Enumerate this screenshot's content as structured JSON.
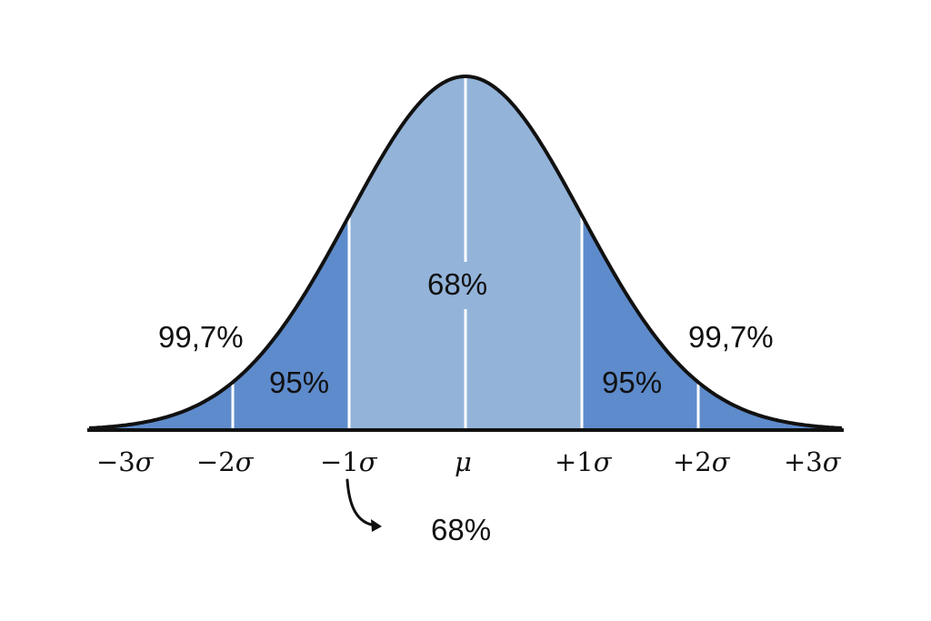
{
  "diagram": {
    "colors": {
      "inner": "#93b3d9",
      "outer": "#5e8bcb",
      "divider": "#ffffff",
      "curve": "#111111",
      "text": "#111111"
    },
    "labels": {
      "center": "68%",
      "band_left": "95%",
      "band_right": "95%",
      "tail_left": "99,7%",
      "tail_right": "99,7%",
      "below": "68%"
    },
    "ticks": [
      {
        "sign": "−3",
        "sym": "σ"
      },
      {
        "sign": "−2",
        "sym": "σ"
      },
      {
        "sign": "−1",
        "sym": "σ"
      },
      {
        "sign": "",
        "sym": "μ"
      },
      {
        "sign": "+1",
        "sym": "σ"
      },
      {
        "sign": "+2",
        "sym": "σ"
      },
      {
        "sign": "+3",
        "sym": "σ"
      }
    ]
  }
}
